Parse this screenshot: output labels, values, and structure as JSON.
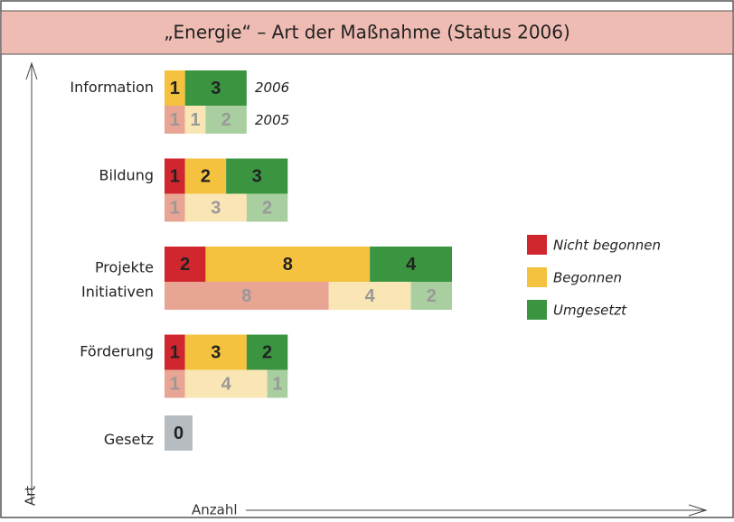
{
  "chart_data": {
    "type": "stacked-barh-paired",
    "title": "„Energie“ – Art der Maßnahme (Status 2006)",
    "y_label": "Art",
    "x_label": "Anzahl",
    "years": [
      "2006",
      "2005"
    ],
    "categories": [
      "Information",
      "Bildung",
      "Projekte Initiativen",
      "Förderung",
      "Gesetz"
    ],
    "xlim": [
      0,
      14
    ],
    "series": [
      {
        "name": "Nicht begonnen",
        "color": "#d0262e",
        "light_color": "#e8a593",
        "values": [
          0,
          1,
          2,
          1,
          null
        ],
        "values_2005": [
          1,
          1,
          8,
          1,
          null
        ]
      },
      {
        "name": "Begonnen",
        "color": "#f4c23f",
        "light_color": "#fae5b5",
        "values": [
          1,
          2,
          8,
          3,
          null
        ],
        "values_2005": [
          1,
          3,
          4,
          4,
          null
        ]
      },
      {
        "name": "Umgesetzt",
        "color": "#3a9440",
        "light_color": "#a9cfa0",
        "values": [
          3,
          3,
          4,
          2,
          null
        ],
        "values_2005": [
          2,
          2,
          2,
          1,
          null
        ]
      }
    ],
    "empty_bar": {
      "category": "Gesetz",
      "label": "0",
      "color": "#b7bcc1"
    }
  }
}
